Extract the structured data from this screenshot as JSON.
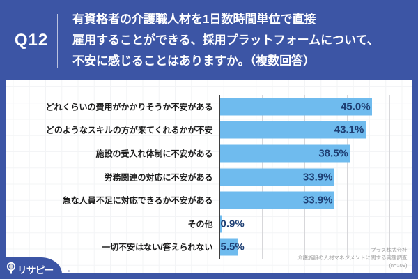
{
  "header": {
    "question_number": "Q12",
    "question_lines": [
      "有資格者の介護職人材を1日数時間単位で直接",
      "雇用することができる、採用プラットフォームについて、",
      "不安に感じることはありますか。（複数回答）"
    ]
  },
  "chart_data": {
    "type": "bar",
    "orientation": "horizontal",
    "categories": [
      "どれくらいの費用がかかりそうか不安がある",
      "どのようなスキルの方が来てくれるかが不安",
      "施設の受入れ体制に不安がある",
      "労務関連の対応に不安がある",
      "急な人員不足に対応できるか不安がある",
      "その他",
      "一切不安はない/答えられない"
    ],
    "values": [
      45.0,
      43.1,
      38.5,
      33.9,
      33.9,
      0.9,
      5.5
    ],
    "value_labels": [
      "45.0%",
      "43.1%",
      "38.5%",
      "33.9%",
      "33.9%",
      "0.9%",
      "5.5%"
    ],
    "xlim": [
      0,
      50
    ],
    "gridlines_percent": [
      12.5,
      25,
      37.5,
      50
    ],
    "grid": true,
    "legend": false,
    "bar_color": "#6fbbee",
    "value_label_color": "#1d3e73"
  },
  "source": {
    "lines": [
      "プラス株式会社",
      "介護施設の人材マネジメントに関する実態調査",
      "(n=109)"
    ]
  },
  "logo": {
    "text": "リサピー"
  },
  "colors": {
    "background": "#3c55a5",
    "card": "#ffffff",
    "bar": "#6fbbee",
    "value_label": "#1d3e73",
    "category_label": "#1b1b1b",
    "source_text": "#9c9c9c"
  }
}
